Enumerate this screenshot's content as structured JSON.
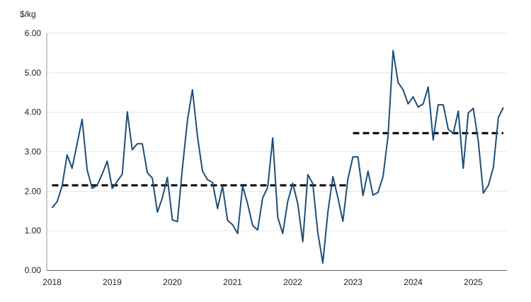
{
  "chart_data": {
    "type": "line",
    "title": "",
    "ylabel": "$/kg",
    "xlabel": "",
    "ylim": [
      0,
      6
    ],
    "yticks": [
      "0.00",
      "1.00",
      "2.00",
      "3.00",
      "4.00",
      "5.00",
      "6.00"
    ],
    "xticks": [
      "2018",
      "2019",
      "2020",
      "2021",
      "2022",
      "2023",
      "2024",
      "2025"
    ],
    "x_start": "2018-01",
    "x_end": "2025-07",
    "frequency": "monthly",
    "grid": "horizontal",
    "series": [
      {
        "color": "#1f4e79",
        "style": "solid",
        "values": [
          1.58,
          1.73,
          2.13,
          2.92,
          2.58,
          3.2,
          3.82,
          2.54,
          2.07,
          2.15,
          2.43,
          2.76,
          2.07,
          2.25,
          2.43,
          4.01,
          3.05,
          3.2,
          3.2,
          2.47,
          2.33,
          1.47,
          1.83,
          2.35,
          1.27,
          1.23,
          2.6,
          3.8,
          4.57,
          3.39,
          2.51,
          2.29,
          2.22,
          1.56,
          2.13,
          1.26,
          1.15,
          0.93,
          2.13,
          1.68,
          1.13,
          1.02,
          1.83,
          2.1,
          3.35,
          1.34,
          0.93,
          1.74,
          2.2,
          1.68,
          0.72,
          2.42,
          2.19,
          0.95,
          0.18,
          1.47,
          2.37,
          1.83,
          1.24,
          2.31,
          2.87,
          2.87,
          1.89,
          2.51,
          1.9,
          1.97,
          2.37,
          3.4,
          5.56,
          4.75,
          4.57,
          4.21,
          4.39,
          4.13,
          4.21,
          4.64,
          3.3,
          4.19,
          4.19,
          3.57,
          3.46,
          4.03,
          2.58,
          3.98,
          4.1,
          3.26,
          1.95,
          2.15,
          2.6,
          3.87,
          4.12
        ]
      }
    ],
    "reference_lines": [
      {
        "color": "#000000",
        "style": "dashed",
        "value": 2.15,
        "from": "2018-01",
        "to": "2022-12"
      },
      {
        "color": "#000000",
        "style": "dashed",
        "value": 3.47,
        "from": "2023-01",
        "to": "2025-07"
      }
    ]
  }
}
